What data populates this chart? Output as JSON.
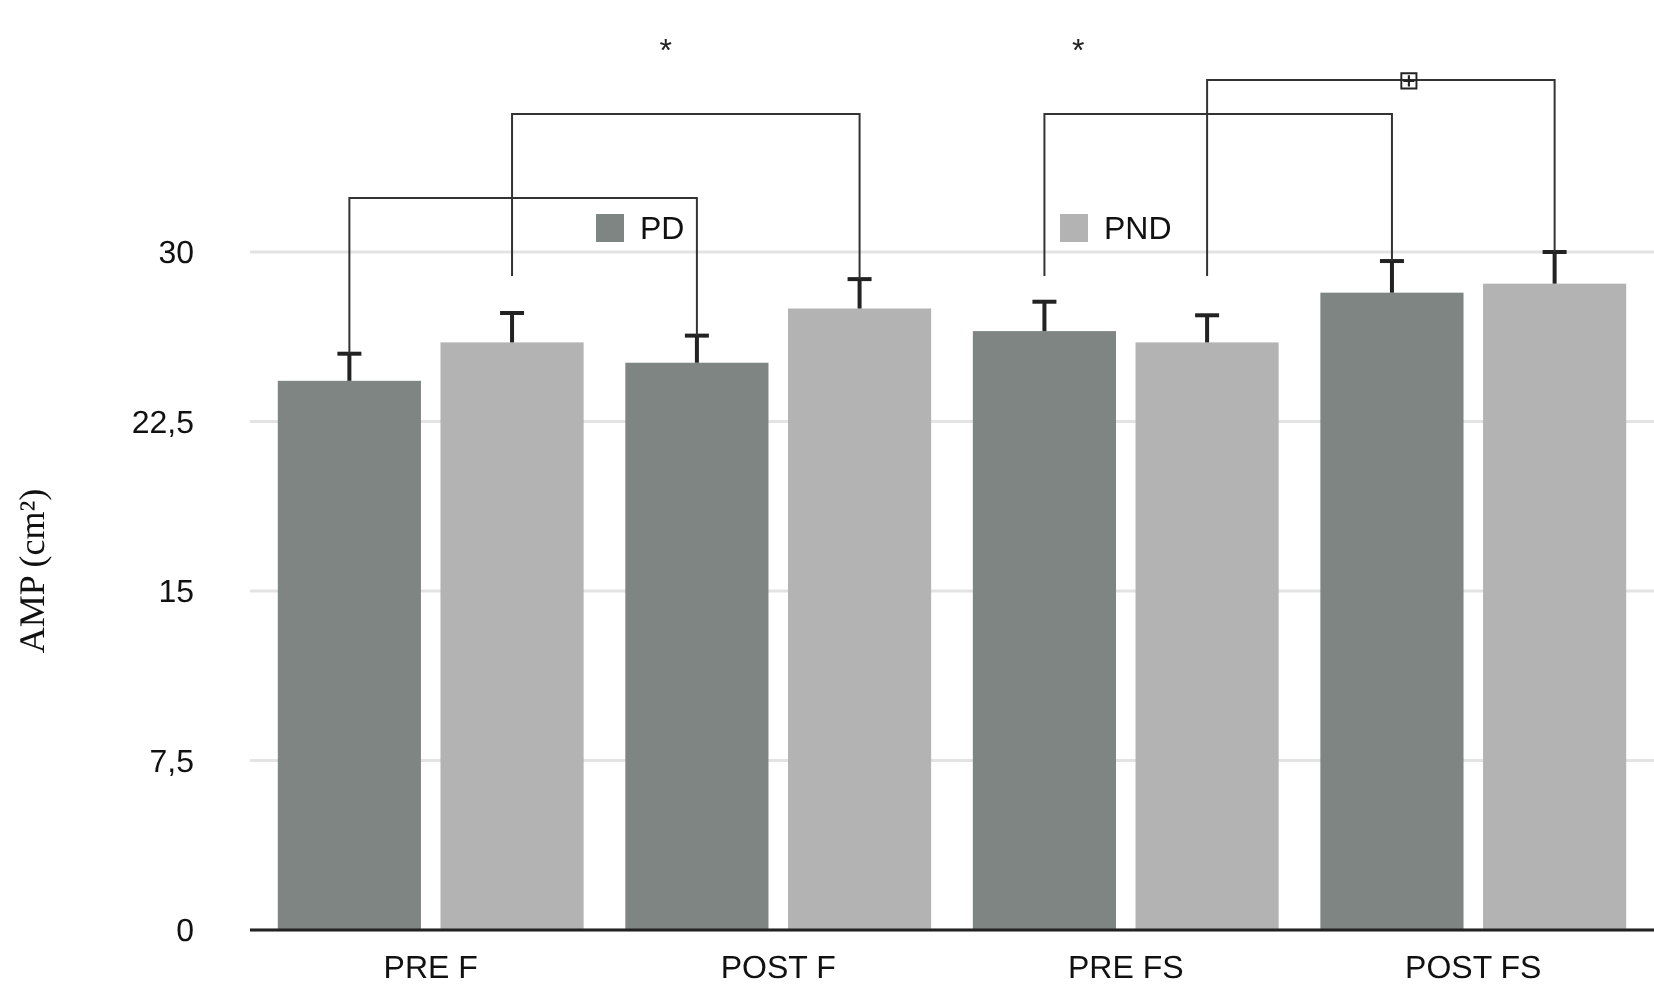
{
  "chart_data": {
    "type": "bar",
    "ylabel": "AMP (cm²)",
    "categories": [
      "PRE F",
      "POST F",
      "PRE FS",
      "POST FS"
    ],
    "series": [
      {
        "name": "PD",
        "color": "#7f8583",
        "values": [
          24.3,
          25.1,
          26.5,
          28.2
        ],
        "errors": [
          1.2,
          1.2,
          1.3,
          1.4
        ]
      },
      {
        "name": "PND",
        "color": "#b3b3b3",
        "values": [
          26.0,
          27.5,
          26.0,
          28.6
        ],
        "errors": [
          1.3,
          1.3,
          1.2,
          1.4
        ]
      }
    ],
    "ylim": [
      0,
      30
    ],
    "yticks": [
      0,
      {
        "value": 7.5,
        "label": "7,5"
      },
      15,
      {
        "value": 22.5,
        "label": "22,5"
      },
      30
    ],
    "grid": "y",
    "legend": "top",
    "annotations": [
      "*",
      "*",
      "⊞"
    ]
  }
}
